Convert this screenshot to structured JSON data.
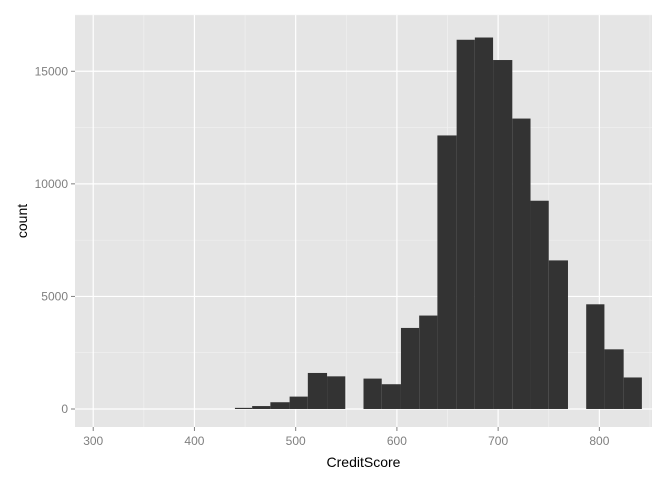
{
  "chart_data": {
    "type": "bar",
    "xlabel": "CreditScore",
    "ylabel": "count",
    "xlim": [
      282,
      852
    ],
    "ylim": [
      -800,
      17500
    ],
    "x_ticks": [
      300,
      400,
      500,
      600,
      700,
      800
    ],
    "y_ticks": [
      0,
      5000,
      10000,
      15000
    ],
    "x_tick_labels": [
      "300",
      "400",
      "500",
      "600",
      "700",
      "800"
    ],
    "y_tick_labels": [
      "0",
      "5000",
      "10000",
      "15000"
    ],
    "grid": true,
    "bars": [
      {
        "x0": 440,
        "x1": 457,
        "value": 50
      },
      {
        "x0": 457,
        "x1": 475,
        "value": 130
      },
      {
        "x0": 475,
        "x1": 494,
        "value": 300
      },
      {
        "x0": 494,
        "x1": 512,
        "value": 550
      },
      {
        "x0": 512,
        "x1": 531,
        "value": 1600
      },
      {
        "x0": 531,
        "x1": 549,
        "value": 1450
      },
      {
        "x0": 549,
        "x1": 567,
        "value": 0
      },
      {
        "x0": 567,
        "x1": 585,
        "value": 1350
      },
      {
        "x0": 585,
        "x1": 604,
        "value": 1100
      },
      {
        "x0": 604,
        "x1": 622,
        "value": 3600
      },
      {
        "x0": 622,
        "x1": 640,
        "value": 4150
      },
      {
        "x0": 640,
        "x1": 659,
        "value": 12150
      },
      {
        "x0": 659,
        "x1": 677,
        "value": 16400
      },
      {
        "x0": 677,
        "x1": 695,
        "value": 16500
      },
      {
        "x0": 695,
        "x1": 714,
        "value": 15500
      },
      {
        "x0": 714,
        "x1": 732,
        "value": 12900
      },
      {
        "x0": 732,
        "x1": 750,
        "value": 9250
      },
      {
        "x0": 750,
        "x1": 769,
        "value": 6600
      },
      {
        "x0": 769,
        "x1": 787,
        "value": 0
      },
      {
        "x0": 787,
        "x1": 805,
        "value": 4650
      },
      {
        "x0": 805,
        "x1": 824,
        "value": 2650
      },
      {
        "x0": 824,
        "x1": 842,
        "value": 1400
      }
    ],
    "colors": {
      "panel": "#e5e5e5",
      "grid_major": "#ffffff",
      "grid_minor": "#f2f2f2",
      "bar": "#333333",
      "tick": "#7f7f7f"
    }
  }
}
